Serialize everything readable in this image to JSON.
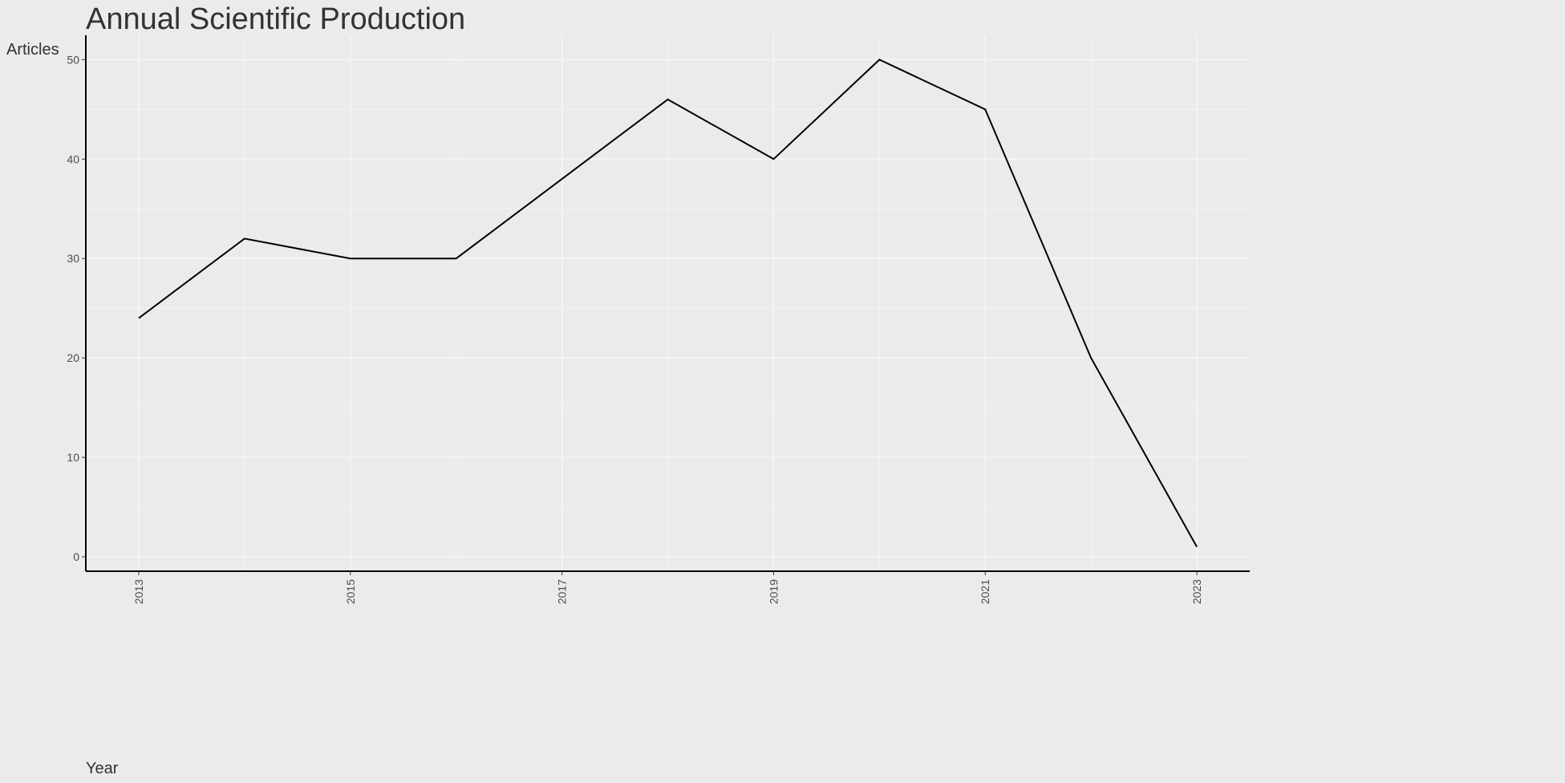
{
  "chart_data": {
    "type": "line",
    "title": "Annual Scientific Production",
    "x_label": "Year",
    "y_label": "Articles",
    "x": [
      2013,
      2014,
      2015,
      2016,
      2017,
      2018,
      2019,
      2020,
      2021,
      2022,
      2023
    ],
    "series": [
      {
        "name": "Articles",
        "color": "#000000",
        "values": [
          24,
          32,
          30,
          30,
          38,
          46,
          40,
          50,
          45,
          20,
          1
        ]
      }
    ],
    "xlim": [
      2012.5,
      2023.5
    ],
    "xticks": [
      2013,
      2015,
      2017,
      2019,
      2021,
      2023
    ],
    "ylim": [
      -1.45,
      52.45
    ],
    "yticks": [
      0,
      10,
      20,
      30,
      40,
      50
    ],
    "grid": true
  }
}
